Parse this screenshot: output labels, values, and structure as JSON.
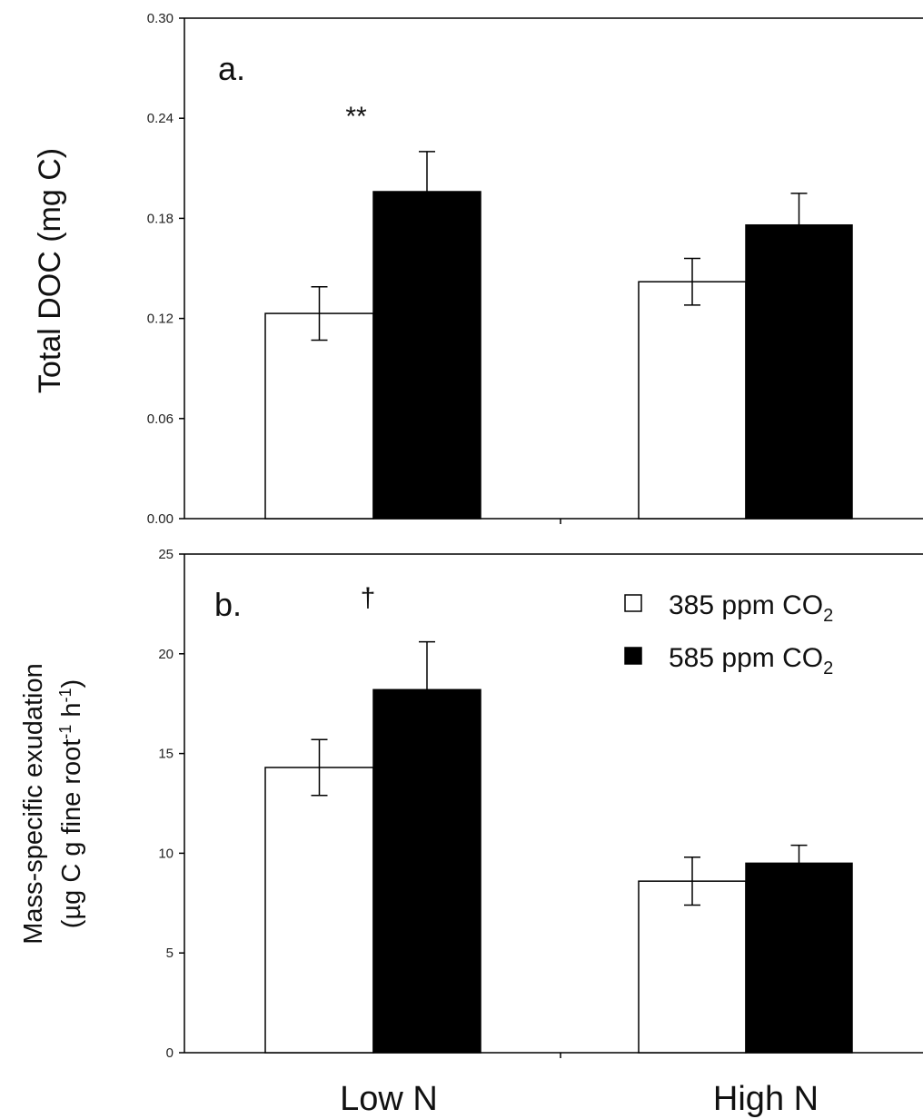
{
  "chart_data": [
    {
      "type": "bar",
      "panel_label": "a.",
      "ylabel": "Total DOC (mg C)",
      "ylim": [
        0,
        0.3
      ],
      "yticks": [
        "0.00",
        "0.06",
        "0.12",
        "0.18",
        "0.24",
        "0.30"
      ],
      "categories": [
        "Low N",
        "High N"
      ],
      "series": [
        {
          "name": "385 ppm CO2",
          "fill": "#ffffff",
          "values": [
            0.123,
            0.142
          ],
          "errors": [
            0.016,
            0.014
          ]
        },
        {
          "name": "585 ppm CO2",
          "fill": "#000000",
          "values": [
            0.196,
            0.176
          ],
          "errors": [
            0.024,
            0.019
          ]
        }
      ],
      "annotations": [
        {
          "category": "Low N",
          "text": "**"
        }
      ]
    },
    {
      "type": "bar",
      "panel_label": "b.",
      "ylabel_line1": "Mass-specific exudation",
      "ylabel_line2": "(µg C g fine root",
      "ylabel_sup1": "-1",
      "ylabel_mid": " h",
      "ylabel_sup2": "-1",
      "ylabel_end": ")",
      "ylim": [
        0,
        25
      ],
      "yticks": [
        "0",
        "5",
        "10",
        "15",
        "20",
        "25"
      ],
      "categories": [
        "Low N",
        "High N"
      ],
      "series": [
        {
          "name": "385 ppm CO2",
          "fill": "#ffffff",
          "values": [
            14.3,
            8.6
          ],
          "errors": [
            1.4,
            1.2
          ]
        },
        {
          "name": "585 ppm CO2",
          "fill": "#000000",
          "values": [
            18.2,
            9.5
          ],
          "errors": [
            2.4,
            0.9
          ]
        }
      ],
      "annotations": [
        {
          "category": "Low N",
          "text": "†"
        }
      ],
      "legend": {
        "position": "top-right",
        "items": [
          {
            "text": "385 ppm CO",
            "sub": "2",
            "fill": "#ffffff"
          },
          {
            "text": "585 ppm CO",
            "sub": "2",
            "fill": "#000000"
          }
        ]
      }
    }
  ]
}
